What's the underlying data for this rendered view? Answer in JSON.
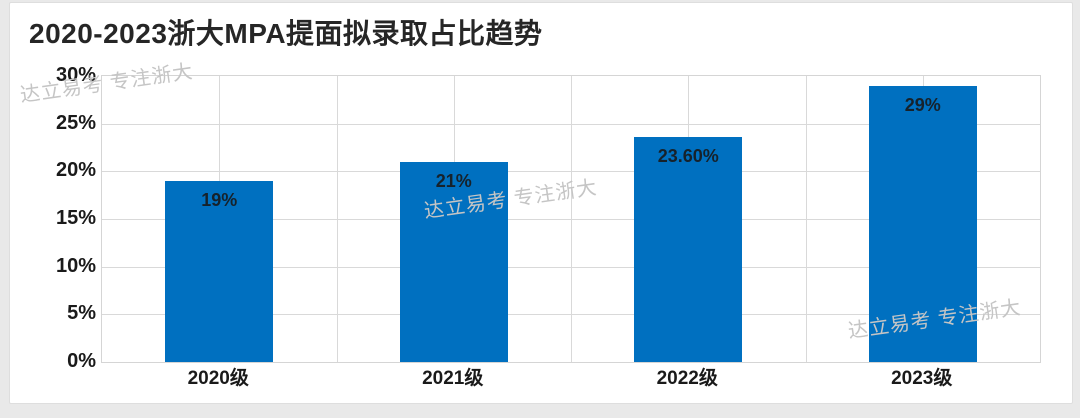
{
  "chart_data": {
    "type": "bar",
    "title": "2020-2023浙大MPA提面拟录取占比趋势",
    "categories": [
      "2020级",
      "2021级",
      "2022级",
      "2023级"
    ],
    "values": [
      19,
      21,
      23.6,
      29
    ],
    "value_labels": [
      "19%",
      "21%",
      "23.60%",
      "29%"
    ],
    "ylim": [
      0,
      30
    ],
    "ytick_step": 5,
    "ytick_labels": [
      "0%",
      "5%",
      "10%",
      "15%",
      "20%",
      "25%",
      "30%"
    ],
    "xlabel": "",
    "ylabel": "",
    "grid": true,
    "legend": false,
    "bar_color": "#0070c0",
    "grid_color": "#d9d9d9",
    "label_color": "#1a1a1a"
  },
  "watermark": {
    "text": "达立易考 专注浙大"
  }
}
